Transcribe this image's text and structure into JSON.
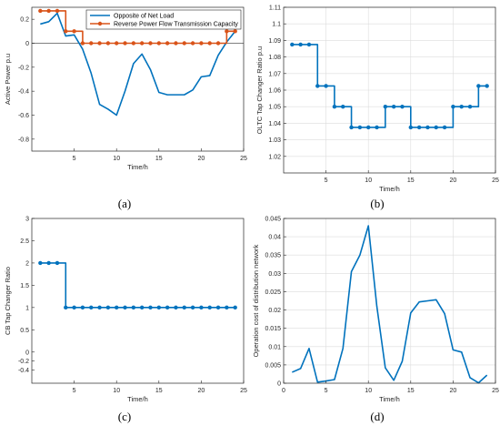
{
  "colors": {
    "blue": "#0072BD",
    "orange": "#D95319",
    "axis": "#262626",
    "grid": "#dcdcdc"
  },
  "chart_data": [
    {
      "id": "a",
      "type": "line",
      "caption": "(a)",
      "xlabel": "Time/h",
      "ylabel": "Active Power p.u",
      "xlim": [
        0,
        25
      ],
      "ylim": [
        -0.9,
        0.3
      ],
      "xticks": [
        5,
        10,
        15,
        20,
        25
      ],
      "yticks": [
        -0.8,
        -0.6,
        -0.4,
        -0.2,
        0,
        0.2
      ],
      "ytick_labels": [
        "-0.8",
        "-0.6",
        "-0.4",
        "-0.2",
        "0",
        "0.2"
      ],
      "grid": false,
      "zero_line": true,
      "legend_position": "top-right",
      "series": [
        {
          "name": "Opposite of Net Load",
          "color": "#0072BD",
          "style": "line",
          "x": [
            1,
            2,
            3,
            4,
            5,
            6,
            7,
            8,
            9,
            10,
            11,
            12,
            13,
            14,
            15,
            16,
            17,
            18,
            19,
            20,
            21,
            22,
            23,
            24
          ],
          "values": [
            0.16,
            0.18,
            0.25,
            0.06,
            0.07,
            -0.05,
            -0.25,
            -0.51,
            -0.55,
            -0.6,
            -0.4,
            -0.17,
            -0.09,
            -0.22,
            -0.41,
            -0.43,
            -0.43,
            -0.43,
            -0.39,
            -0.28,
            -0.27,
            -0.1,
            0.01,
            0.1
          ]
        },
        {
          "name": "Reverse Power Flow Transmission Capacity",
          "color": "#D95319",
          "style": "stairs-markers",
          "x": [
            1,
            2,
            3,
            4,
            5,
            6,
            7,
            8,
            9,
            10,
            11,
            12,
            13,
            14,
            15,
            16,
            17,
            18,
            19,
            20,
            21,
            22,
            23,
            24
          ],
          "values": [
            0.27,
            0.27,
            0.27,
            0.1,
            0.1,
            0,
            0,
            0,
            0,
            0,
            0,
            0,
            0,
            0,
            0,
            0,
            0,
            0,
            0,
            0,
            0,
            0,
            0.1,
            0.1
          ]
        }
      ]
    },
    {
      "id": "b",
      "type": "line",
      "caption": "(b)",
      "xlabel": "Time/h",
      "ylabel": "OLTC Tap Changer Ratio p.u",
      "xlim": [
        0,
        25
      ],
      "ylim": [
        1.01,
        1.11
      ],
      "xticks": [
        5,
        10,
        15,
        20,
        25
      ],
      "yticks": [
        1.02,
        1.03,
        1.04,
        1.05,
        1.06,
        1.07,
        1.08,
        1.09,
        1.1,
        1.11
      ],
      "ytick_labels": [
        "1.02",
        "1.03",
        "1.04",
        "1.05",
        "1.06",
        "1.07",
        "1.08",
        "1.09",
        "1.1",
        "1.11"
      ],
      "grid": true,
      "series": [
        {
          "color": "#0072BD",
          "style": "stairs-markers",
          "x": [
            1,
            2,
            3,
            4,
            5,
            6,
            7,
            8,
            9,
            10,
            11,
            12,
            13,
            14,
            15,
            16,
            17,
            18,
            19,
            20,
            21,
            22,
            23,
            24
          ],
          "values": [
            1.0875,
            1.0875,
            1.0875,
            1.0625,
            1.0625,
            1.05,
            1.05,
            1.0375,
            1.0375,
            1.0375,
            1.0375,
            1.05,
            1.05,
            1.05,
            1.0375,
            1.0375,
            1.0375,
            1.0375,
            1.0375,
            1.05,
            1.05,
            1.05,
            1.0625,
            1.0625
          ]
        }
      ]
    },
    {
      "id": "c",
      "type": "line",
      "caption": "(c)",
      "xlabel": "Time/h",
      "ylabel": "CB Tap Changer Ratio",
      "xlim": [
        0,
        25
      ],
      "ylim": [
        -0.7,
        3
      ],
      "xticks": [
        5,
        10,
        15,
        20,
        25
      ],
      "yticks": [
        -0.4,
        -0.2,
        0,
        0.5,
        1,
        1.5,
        2,
        2.5,
        3
      ],
      "ytick_labels": [
        "-0.4",
        "-0.2",
        "0",
        "0.5",
        "1",
        "1.5",
        "2",
        "2.5",
        "3"
      ],
      "grid": false,
      "series": [
        {
          "color": "#0072BD",
          "style": "stairs-markers",
          "x": [
            1,
            2,
            3,
            4,
            5,
            6,
            7,
            8,
            9,
            10,
            11,
            12,
            13,
            14,
            15,
            16,
            17,
            18,
            19,
            20,
            21,
            22,
            23,
            24
          ],
          "values": [
            2,
            2,
            2,
            1,
            1,
            1,
            1,
            1,
            1,
            1,
            1,
            1,
            1,
            1,
            1,
            1,
            1,
            1,
            1,
            1,
            1,
            1,
            1,
            1
          ]
        }
      ]
    },
    {
      "id": "d",
      "type": "line",
      "caption": "(d)",
      "xlabel": "Time/h",
      "ylabel": "Operation cost of distribution network",
      "xlim": [
        0,
        25
      ],
      "ylim": [
        0,
        0.045
      ],
      "xticks": [
        0,
        5,
        10,
        15,
        20,
        25
      ],
      "yticks": [
        0,
        0.005,
        0.01,
        0.015,
        0.02,
        0.025,
        0.03,
        0.035,
        0.04,
        0.045
      ],
      "ytick_labels": [
        "0",
        "0.005",
        "0.01",
        "0.015",
        "0.02",
        "0.025",
        "0.03",
        "0.035",
        "0.04",
        "0.045"
      ],
      "grid": true,
      "series": [
        {
          "color": "#0072BD",
          "style": "line",
          "x": [
            1,
            2,
            3,
            4,
            5,
            6,
            7,
            8,
            9,
            10,
            11,
            12,
            13,
            14,
            15,
            16,
            17,
            18,
            19,
            20,
            21,
            22,
            23,
            24
          ],
          "values": [
            0.003,
            0.004,
            0.0095,
            0.0003,
            0.0006,
            0.001,
            0.0095,
            0.0305,
            0.035,
            0.043,
            0.021,
            0.0042,
            0.0008,
            0.006,
            0.0192,
            0.0222,
            0.0225,
            0.0228,
            0.019,
            0.0091,
            0.0085,
            0.0015,
            0.0001,
            0.0022
          ]
        }
      ]
    }
  ]
}
